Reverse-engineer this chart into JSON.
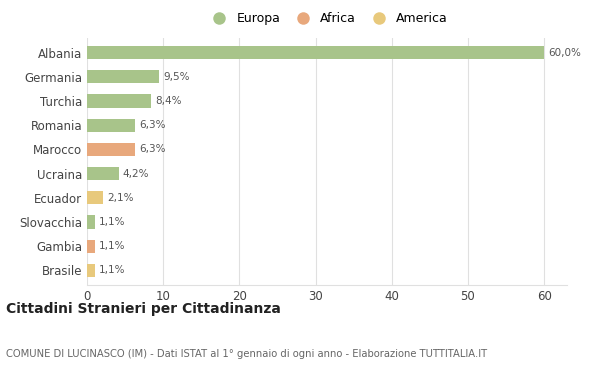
{
  "categories": [
    "Albania",
    "Germania",
    "Turchia",
    "Romania",
    "Marocco",
    "Ucraina",
    "Ecuador",
    "Slovacchia",
    "Gambia",
    "Brasile"
  ],
  "values": [
    60.0,
    9.5,
    8.4,
    6.3,
    6.3,
    4.2,
    2.1,
    1.1,
    1.1,
    1.1
  ],
  "labels": [
    "60,0%",
    "9,5%",
    "8,4%",
    "6,3%",
    "6,3%",
    "4,2%",
    "2,1%",
    "1,1%",
    "1,1%",
    "1,1%"
  ],
  "colors": [
    "#a8c48a",
    "#a8c48a",
    "#a8c48a",
    "#a8c48a",
    "#e8a87c",
    "#a8c48a",
    "#e8c97c",
    "#a8c48a",
    "#e8a87c",
    "#e8c97c"
  ],
  "legend_labels": [
    "Europa",
    "Africa",
    "America"
  ],
  "legend_colors": [
    "#a8c48a",
    "#e8a87c",
    "#e8c97c"
  ],
  "title": "Cittadini Stranieri per Cittadinanza",
  "subtitle": "COMUNE DI LUCINASCO (IM) - Dati ISTAT al 1° gennaio di ogni anno - Elaborazione TUTTITALIA.IT",
  "xlim": [
    0,
    63
  ],
  "xticks": [
    0,
    10,
    20,
    30,
    40,
    50,
    60
  ],
  "bg_color": "#ffffff",
  "grid_color": "#e0e0e0",
  "bar_height": 0.55
}
